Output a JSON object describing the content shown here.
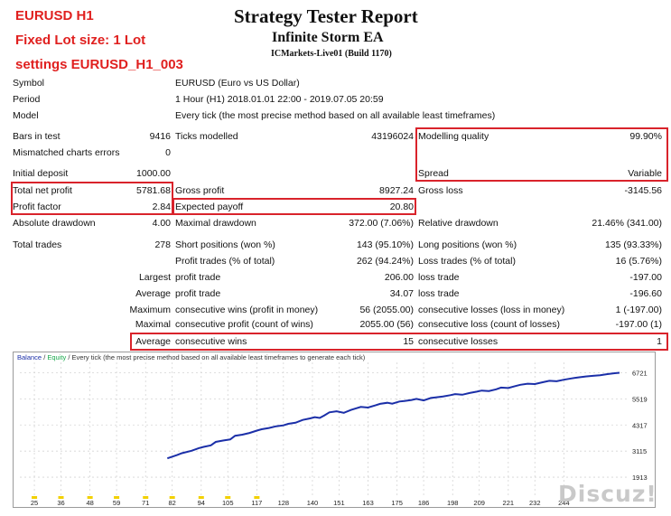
{
  "notes": {
    "line1": "EURUSD H1",
    "line2": "Fixed Lot size: 1 Lot",
    "line3": "settings EURUSD_H1_003"
  },
  "header": {
    "title": "Strategy Tester Report",
    "ea_name": "Infinite Storm EA",
    "server": "ICMarkets-Live01 (Build 1170)"
  },
  "info": {
    "symbol_label": "Symbol",
    "symbol_value": "EURUSD (Euro vs US Dollar)",
    "period_label": "Period",
    "period_value": "1 Hour (H1) 2018.01.01 22:00 - 2019.07.05 20:59",
    "model_label": "Model",
    "model_value": "Every tick (the most precise method based on all available least timeframes)"
  },
  "stats": {
    "bars_label": "Bars in test",
    "bars_value": "9416",
    "ticks_label": "Ticks modelled",
    "ticks_value": "43196024",
    "quality_label": "Modelling quality",
    "quality_value": "99.90%",
    "mismatch_label": "Mismatched charts errors",
    "mismatch_value": "0",
    "deposit_label": "Initial deposit",
    "deposit_value": "1000.00",
    "spread_label": "Spread",
    "spread_value": "Variable",
    "net_label": "Total net profit",
    "net_value": "5781.68",
    "gross_profit_label": "Gross profit",
    "gross_profit_value": "8927.24",
    "gross_loss_label": "Gross loss",
    "gross_loss_value": "-3145.56",
    "pf_label": "Profit factor",
    "pf_value": "2.84",
    "payoff_label": "Expected payoff",
    "payoff_value": "20.80",
    "abs_dd_label": "Absolute drawdown",
    "abs_dd_value": "4.00",
    "max_dd_label": "Maximal drawdown",
    "max_dd_value": "372.00 (7.06%)",
    "rel_dd_label": "Relative drawdown",
    "rel_dd_value": "21.46% (341.00)",
    "trades_label": "Total trades",
    "trades_value": "278",
    "short_label": "Short positions (won %)",
    "short_value": "143 (95.10%)",
    "long_label": "Long positions (won %)",
    "long_value": "135 (93.33%)",
    "pt_label": "Profit trades (% of total)",
    "pt_value": "262 (94.24%)",
    "lt_label": "Loss trades (% of total)",
    "lt_value": "16 (5.76%)",
    "largest_label": "Largest",
    "largest_profit_label": "profit trade",
    "largest_profit_value": "206.00",
    "largest_loss_label": "loss trade",
    "largest_loss_value": "-197.00",
    "average_label": "Average",
    "avg_profit_label": "profit trade",
    "avg_profit_value": "34.07",
    "avg_loss_label": "loss trade",
    "avg_loss_value": "-196.60",
    "maximum_label": "Maximum",
    "max_wins_label": "consecutive wins (profit in money)",
    "max_wins_value": "56 (2055.00)",
    "max_losses_label": "consecutive losses (loss in money)",
    "max_losses_value": "1 (-197.00)",
    "maximal_label": "Maximal",
    "maximal_profit_label": "consecutive profit (count of wins)",
    "maximal_profit_value": "2055.00 (56)",
    "maximal_loss_label": "consecutive loss (count of losses)",
    "maximal_loss_value": "-197.00 (1)",
    "avg2_label": "Average",
    "avg_wins_label": "consecutive wins",
    "avg_wins_value": "15",
    "avg_losses_label": "consecutive losses",
    "avg_losses_value": "1"
  },
  "chart_data": {
    "type": "line",
    "title": "",
    "legend_balance": "Balance",
    "legend_sep1": " / ",
    "legend_equity": "Equity",
    "legend_rest": " / Every tick (the most precise method based on all available least timeframes to generate each tick)",
    "x_ticks": [
      25,
      36,
      48,
      59,
      71,
      82,
      94,
      105,
      117,
      128,
      140,
      151,
      163,
      175,
      186,
      198,
      209,
      221,
      232,
      244
    ],
    "y_ticks": [
      1913,
      3115,
      4317,
      5519,
      6721
    ],
    "xlim": [
      19,
      270
    ],
    "ylim": [
      1000,
      7200
    ],
    "grid": true,
    "colors": {
      "balance": "#1b2fa8",
      "equity": "#17a84a",
      "tick_marks": "#f2d000"
    },
    "series": [
      {
        "name": "Balance",
        "x": [
          80,
          84,
          86,
          90,
          93,
          95,
          98,
          100,
          103,
          106,
          108,
          111,
          114,
          117,
          119,
          122,
          125,
          128,
          130,
          133,
          136,
          139,
          141,
          143,
          145,
          147,
          150,
          153,
          156,
          158,
          160,
          163,
          166,
          168,
          171,
          173,
          176,
          178,
          181,
          183,
          186,
          189,
          191,
          194,
          197,
          199,
          202,
          205,
          208,
          210,
          213,
          216,
          218,
          221,
          224,
          226,
          229,
          232,
          235,
          238,
          241,
          244,
          247,
          250,
          253,
          256,
          259,
          262,
          265,
          267
        ],
        "y": [
          2780,
          2930,
          3020,
          3130,
          3250,
          3310,
          3380,
          3540,
          3600,
          3650,
          3820,
          3870,
          3950,
          4060,
          4120,
          4180,
          4260,
          4300,
          4370,
          4420,
          4550,
          4620,
          4680,
          4640,
          4760,
          4900,
          4950,
          4880,
          5010,
          5080,
          5150,
          5120,
          5220,
          5290,
          5340,
          5300,
          5400,
          5420,
          5470,
          5520,
          5450,
          5560,
          5590,
          5630,
          5690,
          5740,
          5710,
          5790,
          5850,
          5900,
          5880,
          5960,
          6040,
          6020,
          6110,
          6170,
          6220,
          6200,
          6280,
          6350,
          6330,
          6400,
          6460,
          6510,
          6550,
          6580,
          6610,
          6660,
          6700,
          6721
        ]
      }
    ]
  },
  "watermark": "Discuz!"
}
